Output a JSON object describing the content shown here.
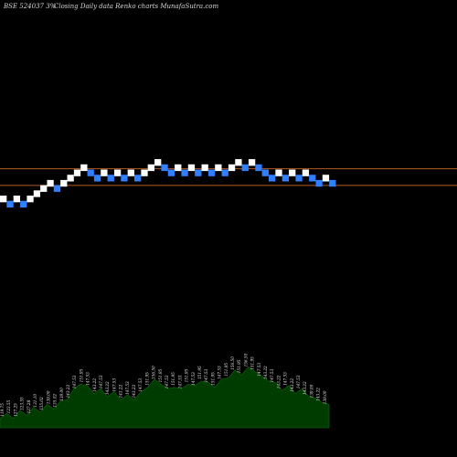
{
  "header": {
    "ticker": "BSE 524037 3%",
    "description": "Closing Daily data  Renko  charts MunafaSutra.com"
  },
  "colors": {
    "background": "#000000",
    "up_brick": "#ffffff",
    "down_brick": "#2f7fff",
    "reference_line": "#b35a1f",
    "volume_fill": "#003c00",
    "volume_edge": "#0e5a0e",
    "text": "#d8d8d8"
  },
  "chart_data": [
    {
      "type": "renko",
      "title": "BSE 524037 3%",
      "subtitle": "Closing Daily data  Renko  charts MunafaSutra.com",
      "bricks": [
        {
          "dir": "up",
          "level": 0
        },
        {
          "dir": "down",
          "level": -1
        },
        {
          "dir": "up",
          "level": 0
        },
        {
          "dir": "down",
          "level": -1
        },
        {
          "dir": "up",
          "level": 0
        },
        {
          "dir": "up",
          "level": 1
        },
        {
          "dir": "up",
          "level": 2
        },
        {
          "dir": "up",
          "level": 3
        },
        {
          "dir": "down",
          "level": 2
        },
        {
          "dir": "up",
          "level": 3
        },
        {
          "dir": "up",
          "level": 4
        },
        {
          "dir": "up",
          "level": 5
        },
        {
          "dir": "up",
          "level": 6
        },
        {
          "dir": "down",
          "level": 5
        },
        {
          "dir": "down",
          "level": 4
        },
        {
          "dir": "up",
          "level": 5
        },
        {
          "dir": "down",
          "level": 4
        },
        {
          "dir": "up",
          "level": 5
        },
        {
          "dir": "down",
          "level": 4
        },
        {
          "dir": "up",
          "level": 5
        },
        {
          "dir": "down",
          "level": 4
        },
        {
          "dir": "up",
          "level": 5
        },
        {
          "dir": "up",
          "level": 6
        },
        {
          "dir": "up",
          "level": 7
        },
        {
          "dir": "down",
          "level": 6
        },
        {
          "dir": "down",
          "level": 5
        },
        {
          "dir": "up",
          "level": 6
        },
        {
          "dir": "down",
          "level": 5
        },
        {
          "dir": "up",
          "level": 6
        },
        {
          "dir": "down",
          "level": 5
        },
        {
          "dir": "up",
          "level": 6
        },
        {
          "dir": "down",
          "level": 5
        },
        {
          "dir": "up",
          "level": 6
        },
        {
          "dir": "down",
          "level": 5
        },
        {
          "dir": "up",
          "level": 6
        },
        {
          "dir": "up",
          "level": 7
        },
        {
          "dir": "down",
          "level": 6
        },
        {
          "dir": "up",
          "level": 7
        },
        {
          "dir": "down",
          "level": 6
        },
        {
          "dir": "down",
          "level": 5
        },
        {
          "dir": "down",
          "level": 4
        },
        {
          "dir": "up",
          "level": 5
        },
        {
          "dir": "down",
          "level": 4
        },
        {
          "dir": "up",
          "level": 5
        },
        {
          "dir": "down",
          "level": 4
        },
        {
          "dir": "up",
          "level": 5
        },
        {
          "dir": "down",
          "level": 4
        },
        {
          "dir": "down",
          "level": 3
        },
        {
          "dir": "up",
          "level": 4
        },
        {
          "dir": "down",
          "level": 3
        }
      ],
      "reference_lines": [
        5.8,
        2.6
      ],
      "volume_labels": [
        "119.75",
        "123.55",
        "127.25",
        "123.55",
        "127.28",
        "131.10",
        "135.02",
        "139.00",
        "135.02",
        "139.00",
        "143.22",
        "147.53",
        "151.95",
        "147.53",
        "143.22",
        "147.53",
        "143.22",
        "147.53",
        "143.22",
        "147.53",
        "143.22",
        "147.53",
        "151.95",
        "156.50",
        "151.95",
        "147.53",
        "151.95",
        "147.53",
        "151.95",
        "147.53",
        "151.95",
        "147.53",
        "151.95",
        "147.53",
        "151.95",
        "156.50",
        "151.95",
        "156.50",
        "151.95",
        "147.53",
        "143.22",
        "147.53",
        "143.22",
        "147.53",
        "143.22",
        "147.53",
        "143.22",
        "139.00",
        "143.22",
        "139.00"
      ],
      "volume_profile": [
        3,
        4,
        3,
        5,
        4,
        6,
        5,
        7,
        6,
        8,
        9,
        12,
        14,
        13,
        11,
        12,
        10,
        11,
        9,
        10,
        9,
        11,
        13,
        15,
        14,
        12,
        13,
        12,
        14,
        13,
        15,
        14,
        13,
        15,
        16,
        18,
        17,
        19,
        18,
        16,
        15,
        14,
        12,
        13,
        11,
        12,
        10,
        9,
        8,
        7
      ]
    }
  ]
}
